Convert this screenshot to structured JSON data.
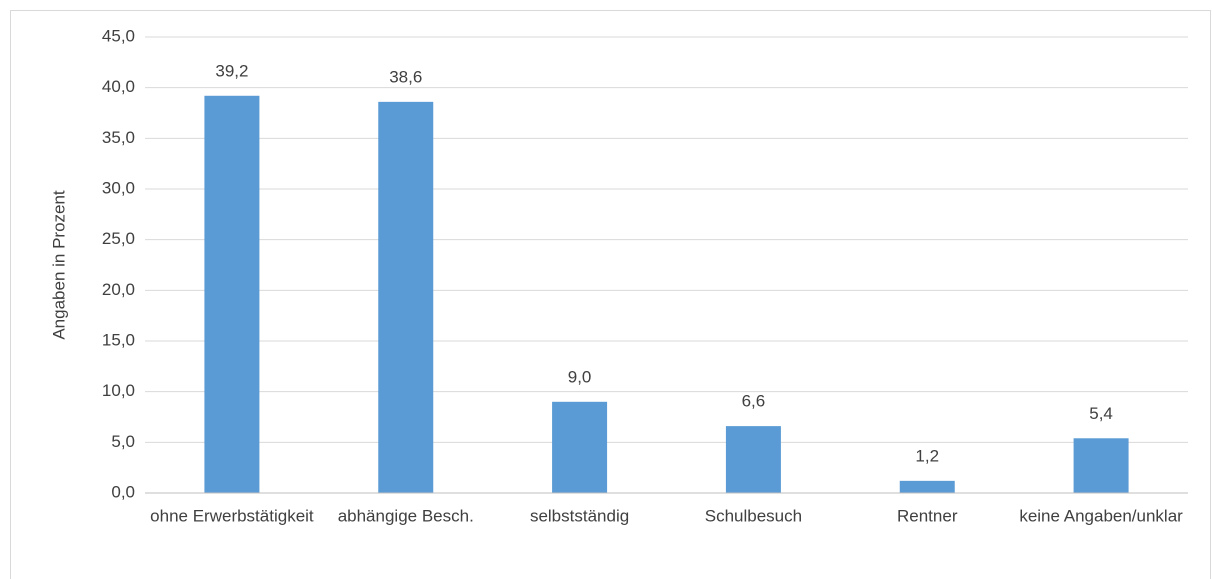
{
  "chart_data": {
    "type": "bar",
    "y_label": "Angaben in Prozent",
    "categories": [
      "ohne Erwerbstätigkeit",
      "abhängige Besch.",
      "selbstständig",
      "Schulbesuch",
      "Rentner",
      "keine Angaben/unklar"
    ],
    "values": [
      39.2,
      38.6,
      9.0,
      6.6,
      1.2,
      5.4
    ],
    "value_labels": [
      "39,2",
      "38,6",
      "9,0",
      "6,6",
      "1,2",
      "5,4"
    ],
    "color": "#5b9bd5",
    "ylim": [
      0,
      45
    ],
    "yticks": [
      {
        "value": 0,
        "label": "0,0"
      },
      {
        "value": 5,
        "label": "5,0"
      },
      {
        "value": 10,
        "label": "10,0"
      },
      {
        "value": 15,
        "label": "15,0"
      },
      {
        "value": 20,
        "label": "20,0"
      },
      {
        "value": 25,
        "label": "25,0"
      },
      {
        "value": 30,
        "label": "30,0"
      },
      {
        "value": 35,
        "label": "35,0"
      },
      {
        "value": 40,
        "label": "40,0"
      },
      {
        "value": 45,
        "label": "45,0"
      }
    ],
    "grid": true
  }
}
